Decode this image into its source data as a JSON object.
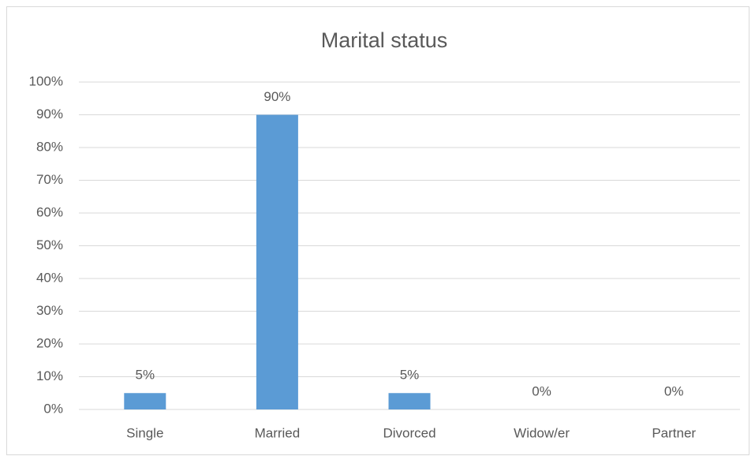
{
  "chart_data": {
    "type": "bar",
    "title": "Marital status",
    "categories": [
      "Single",
      "Married",
      "Divorced",
      "Widow/er",
      "Partner"
    ],
    "values": [
      5,
      90,
      5,
      0,
      0
    ],
    "value_labels": [
      "5%",
      "90%",
      "5%",
      "0%",
      "0%"
    ],
    "color": "#5b9bd5",
    "ylim": [
      0,
      100
    ],
    "yticks": [
      {
        "value": 0,
        "label": "0%"
      },
      {
        "value": 10,
        "label": "10%"
      },
      {
        "value": 20,
        "label": "20%"
      },
      {
        "value": 30,
        "label": "30%"
      },
      {
        "value": 40,
        "label": "40%"
      },
      {
        "value": 50,
        "label": "50%"
      },
      {
        "value": 60,
        "label": "60%"
      },
      {
        "value": 70,
        "label": "70%"
      },
      {
        "value": 80,
        "label": "80%"
      },
      {
        "value": 90,
        "label": "90%"
      },
      {
        "value": 100,
        "label": "100%"
      }
    ],
    "grid": true
  }
}
